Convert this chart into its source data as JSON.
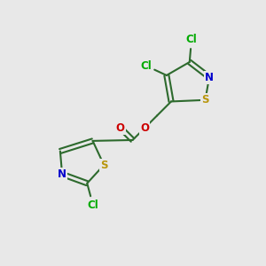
{
  "bg": "#e8e8e8",
  "bond_color": "#2d6a2d",
  "S_color": "#b8960c",
  "N_color": "#0000cc",
  "O_color": "#cc0000",
  "Cl_color": "#00aa00",
  "lw": 1.5,
  "fs": 8.5,
  "xlim": [
    0,
    10
  ],
  "ylim": [
    0,
    10
  ]
}
